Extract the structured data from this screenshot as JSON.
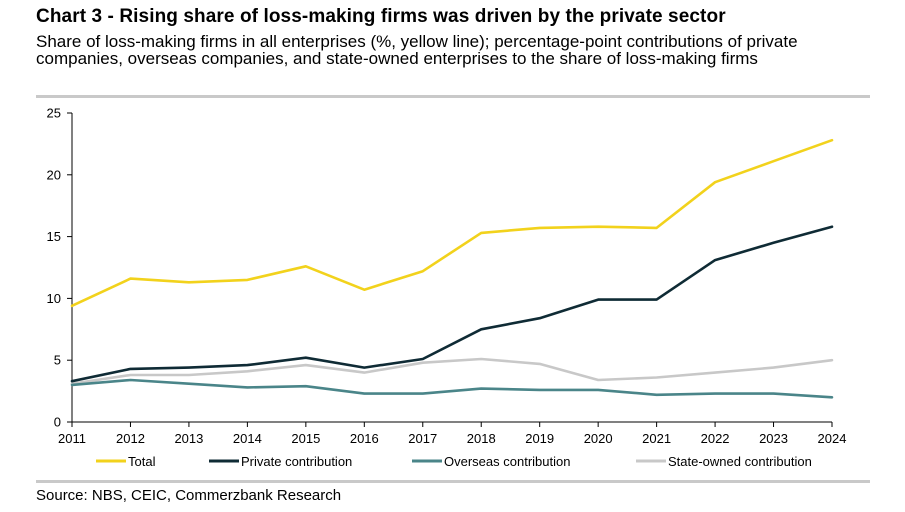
{
  "title": "Chart 3 - Rising share of loss-making firms was driven by the private sector",
  "subtitle": "Share of loss-making firms in all enterprises (%, yellow line); percentage-point contributions of private companies, overseas companies, and state-owned enterprises to the share of loss-making firms",
  "source": "Source: NBS, CEIC, Commerzbank Research",
  "chart_data": {
    "type": "line",
    "x": [
      "2011",
      "2012",
      "2013",
      "2014",
      "2015",
      "2016",
      "2017",
      "2018",
      "2019",
      "2020",
      "2021",
      "2022",
      "2023",
      "2024"
    ],
    "ylim": [
      0,
      25
    ],
    "yticks": [
      "0",
      "5",
      "10",
      "15",
      "20",
      "25"
    ],
    "grid": false,
    "legend": "bottom",
    "series": [
      {
        "name": "Total",
        "color": "#f2d21c",
        "values": [
          9.4,
          11.6,
          11.3,
          11.5,
          12.6,
          10.7,
          12.2,
          15.3,
          15.7,
          15.8,
          15.7,
          19.4,
          21.1,
          22.8
        ]
      },
      {
        "name": "Private contribution",
        "color": "#0f2b35",
        "values": [
          3.3,
          4.3,
          4.4,
          4.6,
          5.2,
          4.4,
          5.1,
          7.5,
          8.4,
          9.9,
          9.9,
          13.1,
          14.5,
          15.8
        ]
      },
      {
        "name": "Overseas contribution",
        "color": "#4a8589",
        "values": [
          3.0,
          3.4,
          3.1,
          2.8,
          2.9,
          2.3,
          2.3,
          2.7,
          2.6,
          2.6,
          2.2,
          2.3,
          2.3,
          2.0
        ]
      },
      {
        "name": "State-owned contribution",
        "color": "#c8c8c8",
        "values": [
          3.1,
          3.8,
          3.8,
          4.1,
          4.6,
          4.0,
          4.8,
          5.1,
          4.7,
          3.4,
          3.6,
          4.0,
          4.4,
          5.0
        ]
      }
    ]
  }
}
